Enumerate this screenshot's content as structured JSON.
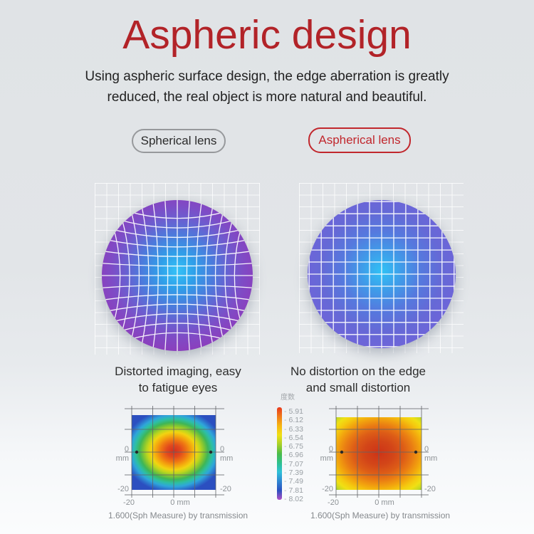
{
  "header": {
    "title": "Aspheric design",
    "subtitle_line1": "Using aspheric surface design, the edge aberration is greatly",
    "subtitle_line2": "reduced, the real object is more natural and beautiful."
  },
  "comparison": {
    "spherical": {
      "pill_label": "Spherical lens",
      "caption_line1": "Distorted imaging, easy",
      "caption_line2": "to fatigue eyes"
    },
    "aspherical": {
      "pill_label": "Aspherical lens",
      "caption_line1": "No distortion on the edge",
      "caption_line2": "and small distortion"
    }
  },
  "colors": {
    "accent_red": "#b22328",
    "pill_gray_border": "#97999c",
    "pill_red_border": "#c1272d",
    "spherical_lens_edge": "#8b3fbd",
    "aspherical_lens_edge": "#6f64d9",
    "lens_center_glow": "#35c3f7"
  },
  "chart_data": {
    "type": "heatmap-pair",
    "legend": {
      "title": "度数",
      "values": [
        "5.91",
        "6.12",
        "6.33",
        "6.54",
        "6.75",
        "6.96",
        "7.07",
        "7.39",
        "7.49",
        "7.81",
        "8.02"
      ],
      "colors_top_to_bottom": [
        "#e8391d",
        "#f07b1a",
        "#f6b612",
        "#f0e015",
        "#a8d028",
        "#4cbc48",
        "#2ec08c",
        "#2fc0d8",
        "#2f86d2",
        "#2c50c0",
        "#b14fc4"
      ]
    },
    "charts": [
      {
        "name": "spherical",
        "caption": "1.600(Sph Measure) by transmission",
        "x_ticks": {
          "neg": "-20",
          "zero": "0 mm"
        },
        "y_ticks": {
          "zero_value": "0",
          "zero_unit": "mm",
          "neg": "-20"
        },
        "pattern": "red center, orange-yellow-green rings, cyan-blue corners"
      },
      {
        "name": "aspherical",
        "caption": "1.600(Sph Measure) by transmission",
        "x_ticks": {
          "neg": "-20",
          "zero": "0 mm"
        },
        "y_ticks": {
          "zero_value": "0",
          "zero_unit": "mm",
          "neg": "-20"
        },
        "pattern": "broad red center, orange body, yellow edges, green corners"
      }
    ]
  }
}
